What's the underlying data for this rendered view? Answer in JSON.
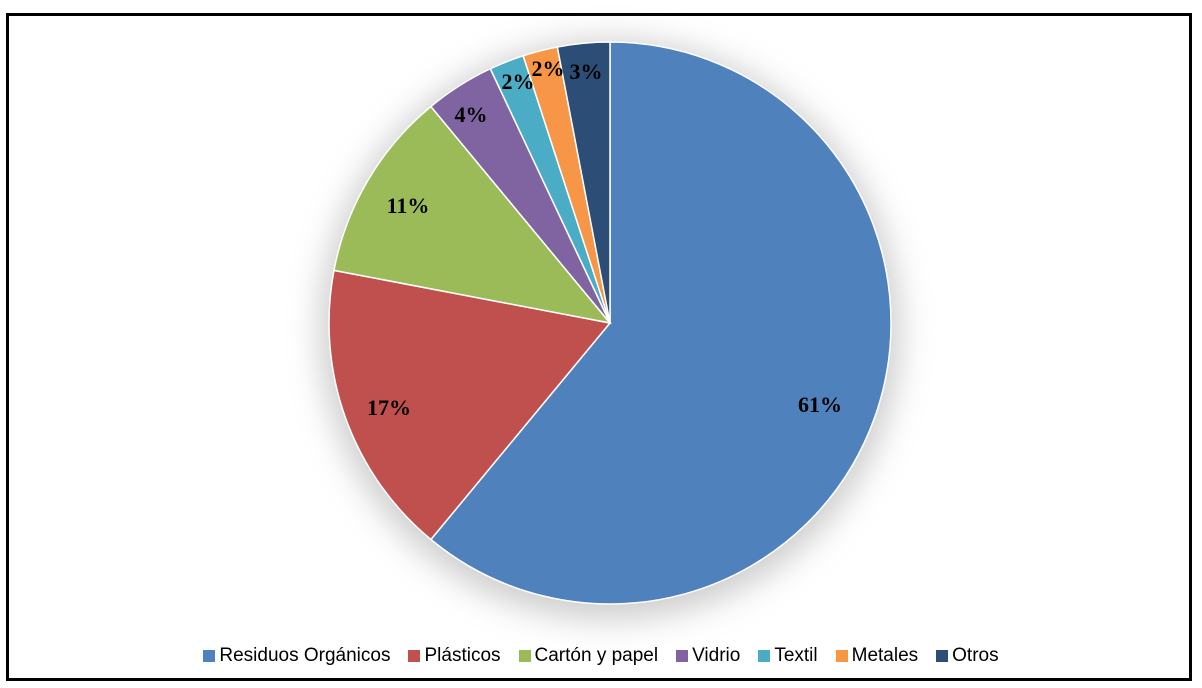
{
  "chart_data": {
    "type": "pie",
    "title": "",
    "slices": [
      {
        "name": "Residuos Orgánicos",
        "value": 61,
        "label": "61%",
        "color": "#4F81BD"
      },
      {
        "name": "Plásticos",
        "value": 17,
        "label": "17%",
        "color": "#C0504D"
      },
      {
        "name": "Cartón y papel",
        "value": 11,
        "label": "11%",
        "color": "#9BBB59"
      },
      {
        "name": "Vidrio",
        "value": 4,
        "label": "4%",
        "color": "#8064A2"
      },
      {
        "name": "Textil",
        "value": 2,
        "label": "2%",
        "color": "#4BACC6"
      },
      {
        "name": "Metales",
        "value": 2,
        "label": "2%",
        "color": "#F79646"
      },
      {
        "name": "Otros",
        "value": 3,
        "label": "3%",
        "color": "#2C4D75"
      }
    ],
    "legend_position": "bottom",
    "start_angle": "top, clockwise"
  }
}
